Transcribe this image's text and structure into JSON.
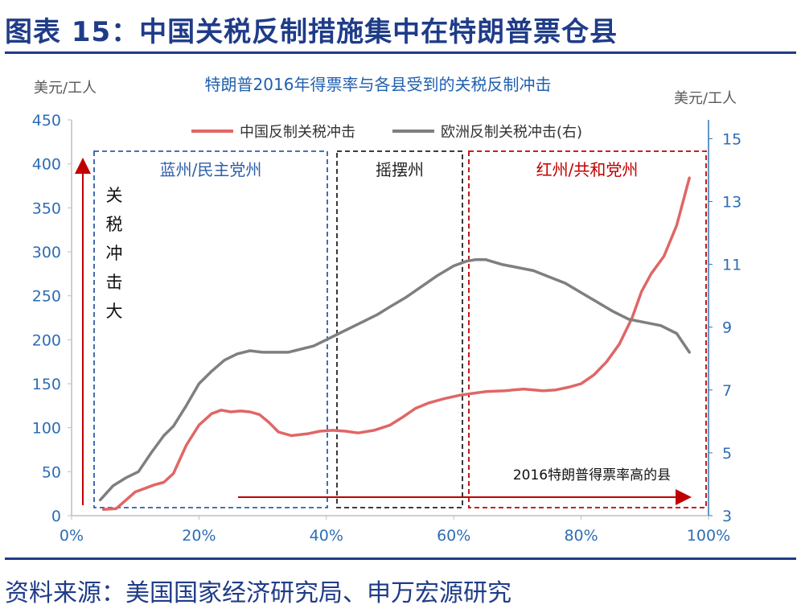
{
  "header": {
    "title": "图表 15：中国关税反制措施集中在特朗普票仓县"
  },
  "footer": {
    "source": "资料来源：美国国家经济研究局、申万宏源研究"
  },
  "colors": {
    "accent": "#1f3c88",
    "china_series": "#e06666",
    "eu_series": "#7f7f7f",
    "blue_box": "#2e5fa8",
    "red_box": "#c00000",
    "axis_text": "#2e6db4"
  },
  "chart_data": {
    "type": "line",
    "title": "特朗普2016年得票率与各县受到的关税反制冲击",
    "left_unit": "美元/工人",
    "right_unit": "美元/工人",
    "xlim": [
      0,
      100
    ],
    "ylim_left": [
      0,
      450
    ],
    "ylim_right": [
      3,
      16
    ],
    "x_ticks": [
      "0%",
      "20%",
      "40%",
      "60%",
      "80%",
      "100%"
    ],
    "y_ticks_left": [
      "0",
      "50",
      "100",
      "150",
      "200",
      "250",
      "300",
      "350",
      "400",
      "450"
    ],
    "y_ticks_right": [
      "3",
      "5",
      "7",
      "9",
      "11",
      "13",
      "15"
    ],
    "legend_position": "top",
    "series": [
      {
        "name": "中国反制关税冲击",
        "axis": "left",
        "x": [
          5,
          7,
          10,
          13,
          14.5,
          16,
          18,
          20,
          22,
          23.5,
          25,
          26.5,
          28,
          29.5,
          31,
          32.5,
          34.5,
          37,
          39,
          41,
          43,
          45,
          47.5,
          50,
          52,
          54,
          56,
          58.5,
          61,
          63,
          65,
          68,
          71,
          74,
          76,
          78,
          80,
          82,
          84,
          86,
          88,
          89.5,
          91,
          93,
          95,
          97
        ],
        "values": [
          7,
          8,
          27,
          35,
          38,
          48,
          80,
          103,
          116,
          120,
          118,
          119,
          118,
          115,
          106,
          95,
          91,
          93,
          96,
          97,
          96,
          94,
          97,
          103,
          112,
          122,
          128,
          133,
          137,
          139,
          141,
          142,
          144,
          142,
          143,
          146,
          150,
          160,
          175,
          195,
          225,
          255,
          275,
          295,
          330,
          384
        ]
      },
      {
        "name": "欧洲反制关税冲击(右)",
        "axis": "right",
        "x": [
          4.5,
          6.5,
          8.5,
          10.5,
          12.5,
          14.5,
          16,
          18,
          20,
          22,
          24,
          26,
          28,
          30,
          32,
          34,
          36,
          38,
          40,
          42,
          44,
          46,
          48,
          50,
          52.5,
          55,
          57.5,
          60,
          62,
          63.5,
          65,
          67.5,
          70,
          72.5,
          75,
          77.5,
          80,
          82.5,
          85,
          87.5,
          90,
          92.5,
          95,
          97
        ],
        "values": [
          3.5,
          3.95,
          4.2,
          4.4,
          5.0,
          5.55,
          5.85,
          6.5,
          7.2,
          7.6,
          7.95,
          8.15,
          8.25,
          8.2,
          8.2,
          8.2,
          8.3,
          8.4,
          8.6,
          8.8,
          9.0,
          9.2,
          9.4,
          9.65,
          9.95,
          10.3,
          10.65,
          10.95,
          11.1,
          11.15,
          11.15,
          11.0,
          10.9,
          10.8,
          10.6,
          10.4,
          10.1,
          9.8,
          9.5,
          9.25,
          9.15,
          9.05,
          8.8,
          8.2
        ]
      }
    ],
    "annotations": {
      "blue_region": {
        "label": "蓝州/民主党州"
      },
      "swing_region": {
        "label": "摇摆州"
      },
      "red_region": {
        "label": "红州/共和党州"
      },
      "vertical_arrow_label": "关税冲击大",
      "horizontal_arrow_label": "2016特朗普得票率高的县"
    }
  }
}
